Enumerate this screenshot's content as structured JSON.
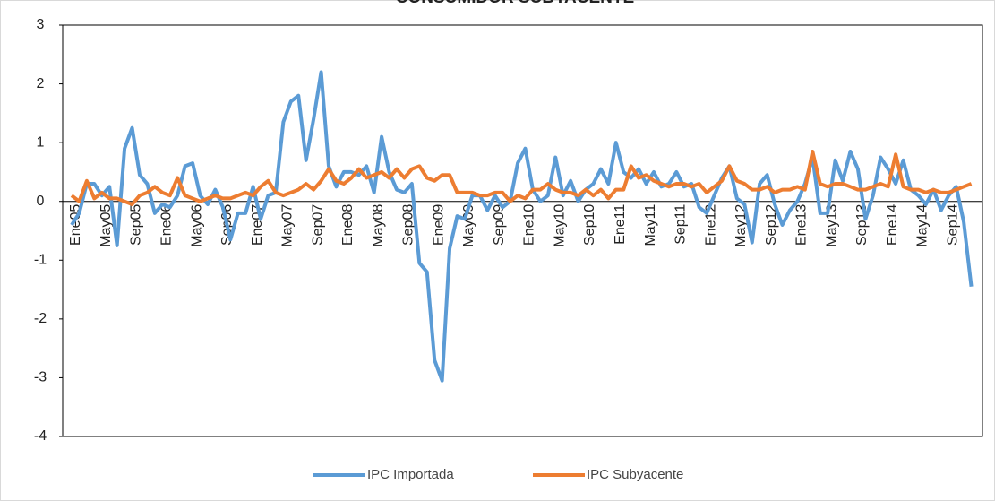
{
  "chart_data": {
    "type": "line",
    "title": "CONSUMIDOR SUBYACENTE",
    "categories": [
      "Ene05",
      null,
      null,
      null,
      "May05",
      null,
      null,
      null,
      "Sep05",
      null,
      null,
      null,
      "Ene06",
      null,
      null,
      null,
      "May06",
      null,
      null,
      null,
      "Sep06",
      null,
      null,
      null,
      "Ene07",
      null,
      null,
      null,
      "May07",
      null,
      null,
      null,
      "Sep07",
      null,
      null,
      null,
      "Ene08",
      null,
      null,
      null,
      "May08",
      null,
      null,
      null,
      "Sep08",
      null,
      null,
      null,
      "Ene09",
      null,
      null,
      null,
      "May09",
      null,
      null,
      null,
      "Sep09",
      null,
      null,
      null,
      "Ene10",
      null,
      null,
      null,
      "May10",
      null,
      null,
      null,
      "Sep10",
      null,
      null,
      null,
      "Ene11",
      null,
      null,
      null,
      "May11",
      null,
      null,
      null,
      "Sep11",
      null,
      null,
      null,
      "Ene12",
      null,
      null,
      null,
      "May12",
      null,
      null,
      null,
      "Sep12",
      null,
      null,
      null,
      "Ene13",
      null,
      null,
      null,
      "May13",
      null,
      null,
      null,
      "Sep13",
      null,
      null,
      null,
      "Ene14",
      null,
      null,
      null,
      "May14",
      null,
      null,
      null,
      "Sep14",
      null,
      null,
      null
    ],
    "series": [
      {
        "name": "IPC Importada",
        "color": "#5b9bd5",
        "values": [
          -0.4,
          -0.2,
          0.3,
          0.3,
          0.1,
          0.25,
          -0.75,
          0.9,
          1.25,
          0.45,
          0.3,
          -0.2,
          -0.05,
          -0.1,
          0.1,
          0.6,
          0.65,
          0.1,
          -0.05,
          0.2,
          -0.1,
          -0.65,
          -0.2,
          -0.2,
          0.25,
          -0.3,
          0.1,
          0.15,
          1.35,
          1.7,
          1.8,
          0.7,
          1.4,
          2.2,
          0.6,
          0.25,
          0.5,
          0.5,
          0.45,
          0.6,
          0.15,
          1.1,
          0.5,
          0.2,
          0.15,
          0.3,
          -1.05,
          -1.2,
          -2.7,
          -3.05,
          -0.8,
          -0.25,
          -0.3,
          0.1,
          0.1,
          -0.15,
          0.1,
          -0.1,
          0.0,
          0.65,
          0.9,
          0.2,
          0.0,
          0.1,
          0.75,
          0.1,
          0.35,
          0.0,
          0.2,
          0.3,
          0.55,
          0.3,
          1.0,
          0.5,
          0.4,
          0.55,
          0.3,
          0.5,
          0.25,
          0.3,
          0.5,
          0.25,
          0.3,
          -0.1,
          -0.2,
          0.1,
          0.4,
          0.6,
          0.05,
          -0.05,
          -0.7,
          0.3,
          0.45,
          -0.05,
          -0.4,
          -0.15,
          0.0,
          0.3,
          0.75,
          -0.2,
          -0.2,
          0.7,
          0.35,
          0.85,
          0.55,
          -0.3,
          0.1,
          0.75,
          0.55,
          0.3,
          0.7,
          0.2,
          0.1,
          -0.05,
          0.2,
          -0.15,
          0.1,
          0.25,
          -0.35,
          -1.45
        ]
      },
      {
        "name": "IPC Subyacente",
        "color": "#ed7d31",
        "values": [
          0.1,
          0.0,
          0.35,
          0.05,
          0.15,
          0.05,
          0.05,
          0.0,
          -0.05,
          0.1,
          0.15,
          0.25,
          0.15,
          0.1,
          0.4,
          0.1,
          0.05,
          0.0,
          0.05,
          0.1,
          0.05,
          0.05,
          0.1,
          0.15,
          0.1,
          0.25,
          0.35,
          0.15,
          0.1,
          0.15,
          0.2,
          0.3,
          0.2,
          0.35,
          0.55,
          0.35,
          0.3,
          0.4,
          0.55,
          0.4,
          0.45,
          0.5,
          0.4,
          0.55,
          0.4,
          0.55,
          0.6,
          0.4,
          0.35,
          0.45,
          0.45,
          0.15,
          0.15,
          0.15,
          0.1,
          0.1,
          0.15,
          0.15,
          0.0,
          0.1,
          0.05,
          0.2,
          0.2,
          0.3,
          0.2,
          0.15,
          0.15,
          0.1,
          0.2,
          0.1,
          0.2,
          0.05,
          0.2,
          0.2,
          0.6,
          0.4,
          0.45,
          0.35,
          0.3,
          0.25,
          0.3,
          0.3,
          0.25,
          0.3,
          0.15,
          0.25,
          0.35,
          0.6,
          0.35,
          0.3,
          0.2,
          0.2,
          0.25,
          0.15,
          0.2,
          0.2,
          0.25,
          0.2,
          0.85,
          0.3,
          0.25,
          0.3,
          0.3,
          0.25,
          0.2,
          0.2,
          0.25,
          0.3,
          0.25,
          0.8,
          0.25,
          0.2,
          0.2,
          0.15,
          0.2,
          0.15,
          0.15,
          0.2,
          0.25,
          0.3
        ]
      }
    ],
    "ylim": [
      -4,
      3
    ],
    "yticks": [
      -4,
      -3,
      -2,
      -1,
      0,
      1,
      2,
      3
    ],
    "grid": false,
    "legend": "bottom"
  }
}
